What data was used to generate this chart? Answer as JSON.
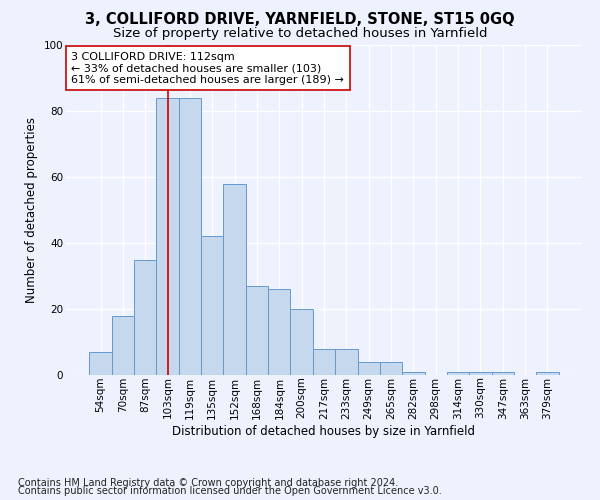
{
  "title": "3, COLLIFORD DRIVE, YARNFIELD, STONE, ST15 0GQ",
  "subtitle": "Size of property relative to detached houses in Yarnfield",
  "xlabel": "Distribution of detached houses by size in Yarnfield",
  "ylabel": "Number of detached properties",
  "bar_labels": [
    "54sqm",
    "70sqm",
    "87sqm",
    "103sqm",
    "119sqm",
    "135sqm",
    "152sqm",
    "168sqm",
    "184sqm",
    "200sqm",
    "217sqm",
    "233sqm",
    "249sqm",
    "265sqm",
    "282sqm",
    "298sqm",
    "314sqm",
    "330sqm",
    "347sqm",
    "363sqm",
    "379sqm"
  ],
  "bar_values": [
    7,
    18,
    35,
    84,
    84,
    42,
    58,
    27,
    26,
    20,
    8,
    8,
    4,
    4,
    1,
    0,
    1,
    1,
    1,
    0,
    1
  ],
  "bar_color": "#c5d8ee",
  "bar_edge_color": "#6699cc",
  "highlight_bar_index": 3,
  "highlight_line_color": "#cc0000",
  "annotation_text": "3 COLLIFORD DRIVE: 112sqm\n← 33% of detached houses are smaller (103)\n61% of semi-detached houses are larger (189) →",
  "footnote1": "Contains HM Land Registry data © Crown copyright and database right 2024.",
  "footnote2": "Contains public sector information licensed under the Open Government Licence v3.0.",
  "bg_color": "#eef2ff",
  "plot_bg_color": "#eef2ff",
  "grid_color": "#ffffff",
  "ylim": [
    0,
    100
  ],
  "title_fontsize": 10.5,
  "subtitle_fontsize": 9.5,
  "axis_label_fontsize": 8.5,
  "tick_fontsize": 7.5,
  "annotation_fontsize": 8,
  "footnote_fontsize": 7
}
